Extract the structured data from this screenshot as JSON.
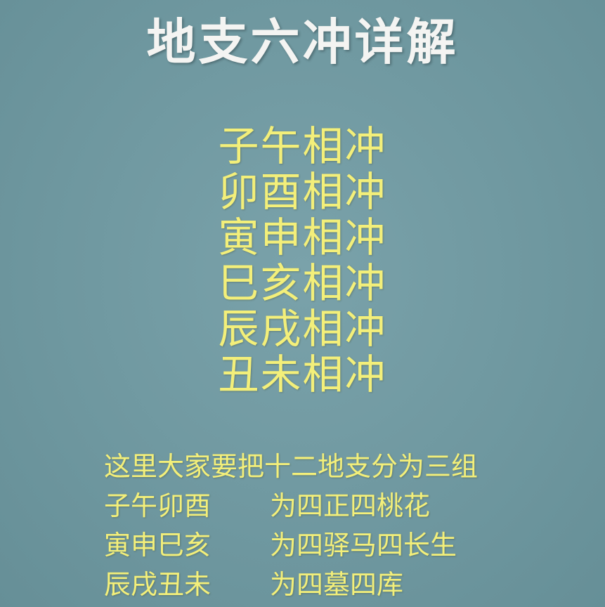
{
  "title": "地支六冲详解",
  "pairs": [
    "子午相冲",
    "卯酉相冲",
    "寅申相冲",
    "巳亥相冲",
    "辰戌相冲",
    "丑未相冲"
  ],
  "intro": "这里大家要把十二地支分为三组",
  "groups": [
    {
      "branches": "子午卯酉",
      "desc": "为四正四桃花"
    },
    {
      "branches": "寅申巳亥",
      "desc": "为四驿马四长生"
    },
    {
      "branches": "辰戌丑未",
      "desc": "为四墓四库"
    }
  ],
  "colors": {
    "background": "#6f98a0",
    "title": "#f4f4f2",
    "text": "#f3ef7a"
  }
}
